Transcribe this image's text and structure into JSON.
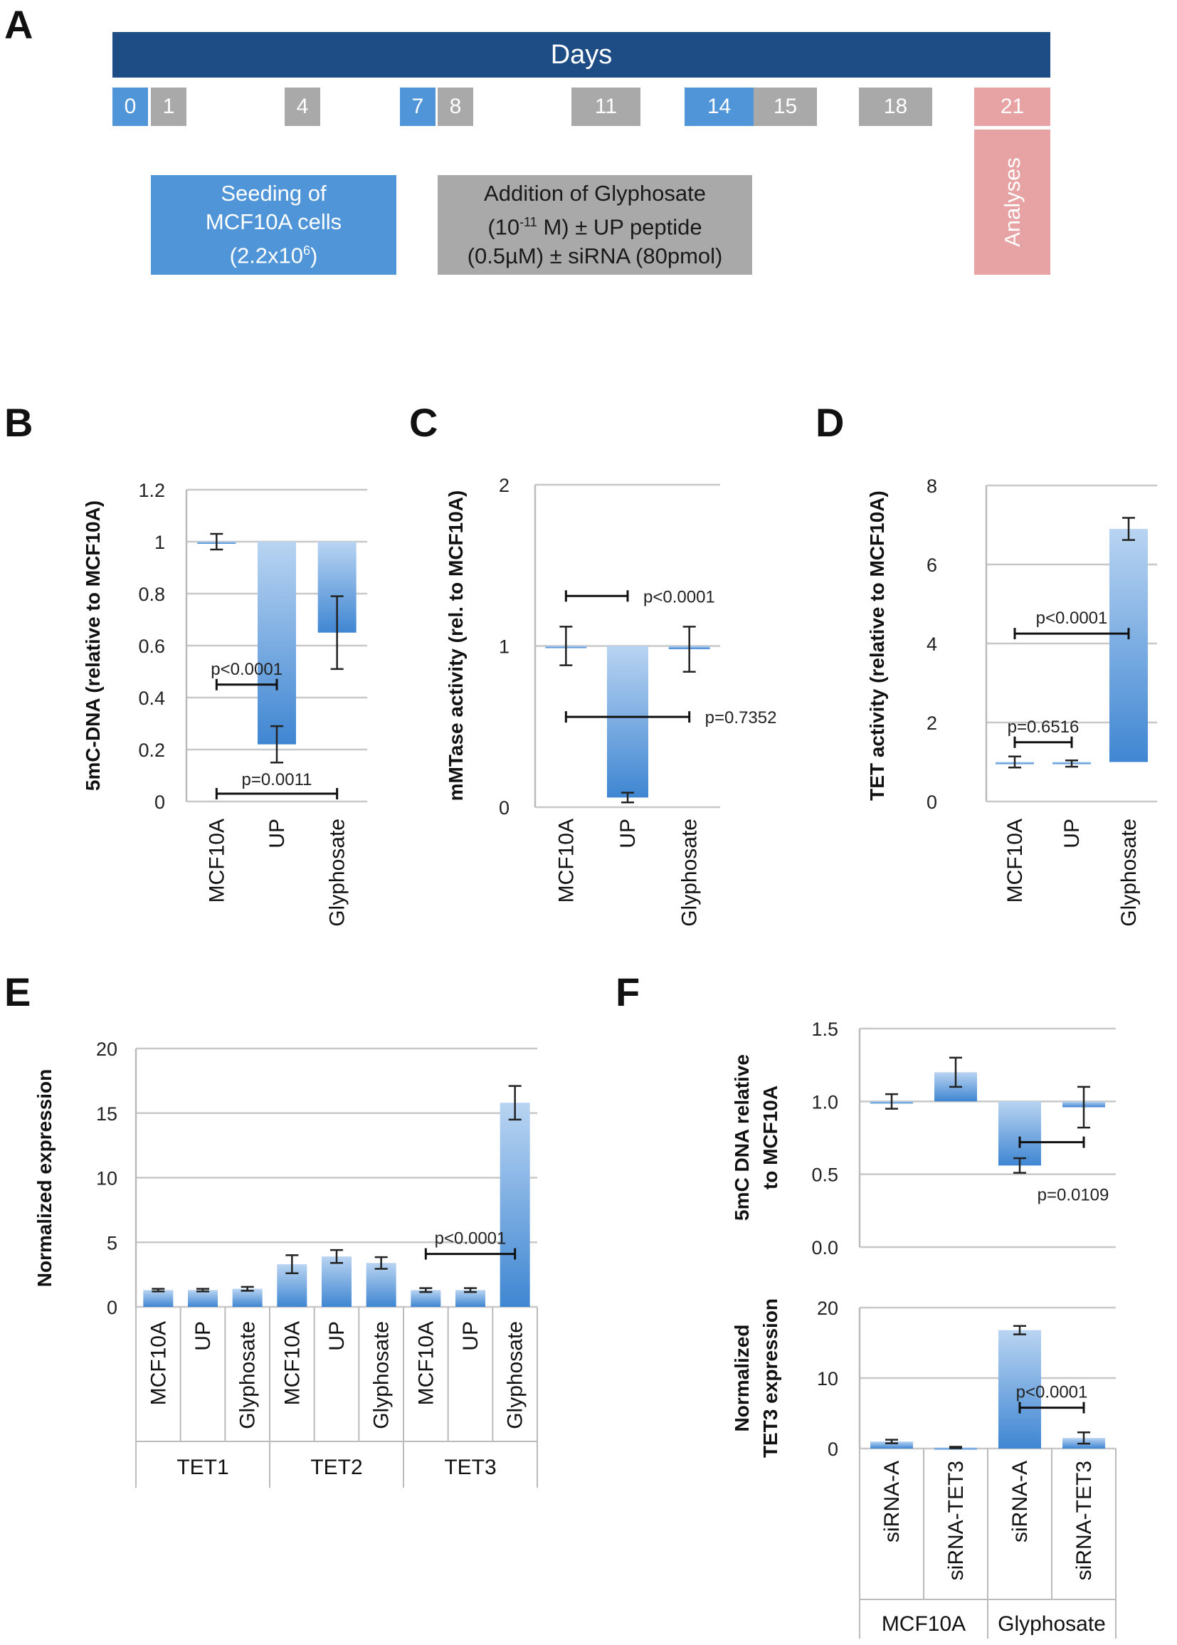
{
  "panel_letters": {
    "a": "A",
    "b": "B",
    "c": "C",
    "d": "D",
    "e": "E",
    "f": "F"
  },
  "timeline": {
    "header": "Days",
    "days": [
      {
        "label": "0",
        "kind": "blue"
      },
      {
        "label": "1",
        "kind": "grey"
      },
      {
        "label": "4",
        "kind": "grey"
      },
      {
        "label": "7",
        "kind": "blue"
      },
      {
        "label": "8",
        "kind": "grey"
      },
      {
        "label": "11",
        "kind": "grey"
      },
      {
        "label": "14",
        "kind": "blue"
      },
      {
        "label": "15",
        "kind": "grey"
      },
      {
        "label": "18",
        "kind": "grey"
      },
      {
        "label": "21",
        "kind": "pink"
      }
    ],
    "seeding": {
      "line1": "Seeding of",
      "line2": "MCF10A cells",
      "line3_pre": "(2.2x10",
      "line3_sup": "6",
      "line3_post": ")"
    },
    "addition": {
      "line1": "Addition of Glyphosate",
      "line2_pre": "(10",
      "line2_sup": "-11",
      "line2_post": " M) ± UP peptide",
      "line3": "(0.5µM) ± siRNA (80pmol)"
    },
    "analyses": "Analyses"
  },
  "colors": {
    "bar_top": "#b9d4f2",
    "bar_bottom": "#3f86d2",
    "days_header": "#1e4d86",
    "grid": "#c8c8c8"
  },
  "chart_data": [
    {
      "id": "B",
      "type": "bar",
      "baseline": 1,
      "categories": [
        "MCF10A",
        "UP",
        "Glyphosate"
      ],
      "values": [
        1.0,
        0.22,
        0.65
      ],
      "errors": [
        0.03,
        0.07,
        0.14
      ],
      "ylabel": "5mC-DNA (relative to MCF10A)",
      "ylim": [
        0,
        1.2
      ],
      "yticks": [
        "0",
        "0.2",
        "0.4",
        "0.6",
        "0.8",
        "1",
        "1.2"
      ],
      "annotations": [
        {
          "text": "p<0.0001",
          "from": 0,
          "to": 1,
          "y": 0.45
        },
        {
          "text": "p=0.0011",
          "from": 0,
          "to": 2,
          "y": 0.03
        }
      ]
    },
    {
      "id": "C",
      "type": "bar",
      "baseline": 1,
      "categories": [
        "MCF10A",
        "UP",
        "Glyphosate"
      ],
      "values": [
        1.0,
        0.06,
        0.98
      ],
      "errors": [
        0.12,
        0.03,
        0.14
      ],
      "ylabel": "mMTase activity (rel. to MCF10A)",
      "ylim": [
        0,
        2
      ],
      "yticks": [
        "0",
        "1",
        "2"
      ],
      "annotations": [
        {
          "text": "p<0.0001",
          "from": 0,
          "to": 1,
          "y": 1.31
        },
        {
          "text": "p=0.7352",
          "from": 0,
          "to": 2,
          "y": 0.56
        }
      ]
    },
    {
      "id": "D",
      "type": "bar",
      "baseline": 1,
      "categories": [
        "MCF10A",
        "UP",
        "Glyphosate"
      ],
      "values": [
        1.0,
        0.96,
        6.9
      ],
      "errors": [
        0.14,
        0.08,
        0.28
      ],
      "ylabel": "TET activity (relative to MCF10A)",
      "ylim": [
        0,
        8
      ],
      "yticks": [
        "0",
        "2",
        "4",
        "6",
        "8"
      ],
      "annotations": [
        {
          "text": "p=0.6516",
          "from": 0,
          "to": 1,
          "y": 1.5
        },
        {
          "text": "p<0.0001",
          "from": 0,
          "to": 2,
          "y": 4.25
        }
      ]
    },
    {
      "id": "E",
      "type": "bar",
      "baseline": 0,
      "categories": [
        "MCF10A",
        "UP",
        "Glyphosate",
        "MCF10A",
        "UP",
        "Glyphosate",
        "MCF10A",
        "UP",
        "Glyphosate"
      ],
      "groups": [
        "TET1",
        "TET2",
        "TET3"
      ],
      "values": [
        1.3,
        1.3,
        1.4,
        3.3,
        3.9,
        3.4,
        1.3,
        1.3,
        15.8
      ],
      "errors": [
        0.1,
        0.1,
        0.15,
        0.7,
        0.5,
        0.45,
        0.15,
        0.15,
        1.3
      ],
      "ylabel": "Normalized expression",
      "ylim": [
        0,
        20
      ],
      "yticks": [
        "0",
        "5",
        "10",
        "15",
        "20"
      ],
      "annotations": [
        {
          "text": "p<0.0001",
          "from": 6,
          "to": 8,
          "y": 4.1
        }
      ]
    },
    {
      "id": "F-top",
      "type": "bar",
      "baseline": 1,
      "categories": [
        "siRNA-A",
        "siRNA-TET3",
        "siRNA-A",
        "siRNA-TET3"
      ],
      "values": [
        1.0,
        1.2,
        0.56,
        0.96
      ],
      "errors": [
        0.05,
        0.1,
        0.05,
        0.14
      ],
      "ylabel_lines": [
        "5mC DNA relative",
        "to MCF10A"
      ],
      "ylim": [
        0,
        1.5
      ],
      "yticks": [
        "0.0",
        "0.5",
        "1.0",
        "1.5"
      ],
      "annotations": [
        {
          "text": "p=0.0109",
          "from": 2,
          "to": 3,
          "y": 0.72,
          "label_below": true
        }
      ]
    },
    {
      "id": "F-bottom",
      "type": "bar",
      "baseline": 0,
      "categories": [
        "siRNA-A",
        "siRNA-TET3",
        "siRNA-A",
        "siRNA-TET3"
      ],
      "groups": [
        "MCF10A",
        "Glyphosate"
      ],
      "values": [
        1.0,
        0.15,
        16.8,
        1.5
      ],
      "errors": [
        0.25,
        0.1,
        0.6,
        0.8
      ],
      "ylabel_lines": [
        "Normalized",
        "TET3 expression"
      ],
      "ylim": [
        0,
        20
      ],
      "yticks": [
        "0",
        "10",
        "20"
      ],
      "annotations": [
        {
          "text": "p<0.0001",
          "from": 2,
          "to": 3,
          "y": 5.8
        }
      ]
    }
  ]
}
